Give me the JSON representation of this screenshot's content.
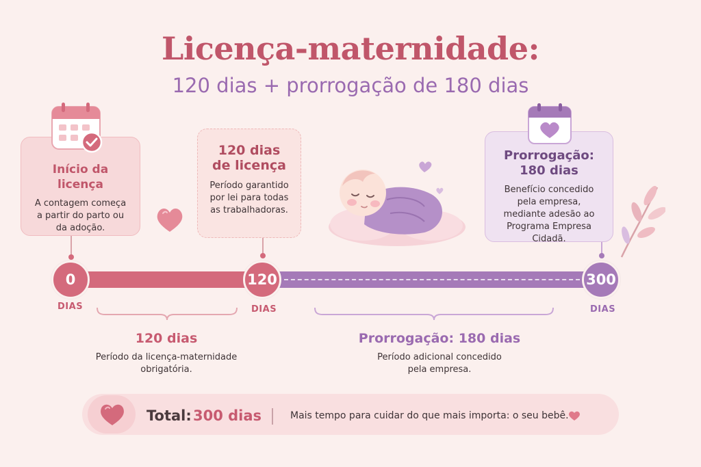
{
  "title": "Licença-maternidade:",
  "subtitle": "120 dias + prorrogação de 180 dias",
  "cards": {
    "start": {
      "title": "Início da licença",
      "text": "A contagem começa a partir do parto ou da adoção."
    },
    "mid": {
      "title_line1": "120 dias",
      "title_line2": "de licença",
      "text": "Período garantido por lei para todas as trabalhadoras."
    },
    "end": {
      "title_line1": "Prorrogação:",
      "title_line2": "180 dias",
      "text": "Benefício concedido pela empresa, mediante adesão ao Programa Empresa Cidadã."
    }
  },
  "timeline": {
    "markers": [
      {
        "value": "0",
        "unit": "DIAS",
        "color": "#d46a7c"
      },
      {
        "value": "120",
        "unit": "DIAS",
        "color": "#d46a7c"
      },
      {
        "value": "300",
        "unit": "DIAS",
        "color": "#a57ab8"
      }
    ]
  },
  "segments": {
    "first": {
      "title": "120 dias",
      "text_line1": "Período da licença-maternidade",
      "text_line2": "obrigatória."
    },
    "second": {
      "title": "Prorrogação: 180 dias",
      "text_line1": "Período adicional concedido",
      "text_line2": "pela empresa."
    }
  },
  "total": {
    "label": "Total:",
    "value": "300 dias",
    "message": "Mais tempo para cuidar do que mais importa: o seu bebê."
  },
  "colors": {
    "pink": "#d46a7c",
    "purple": "#a57ab8",
    "title": "#c0566a",
    "background": "#fbf0ee"
  },
  "icons": [
    "calendar-check-icon",
    "calendar-heart-icon",
    "heart-icon",
    "sleeping-baby-icon",
    "leaf-branch-icon"
  ]
}
